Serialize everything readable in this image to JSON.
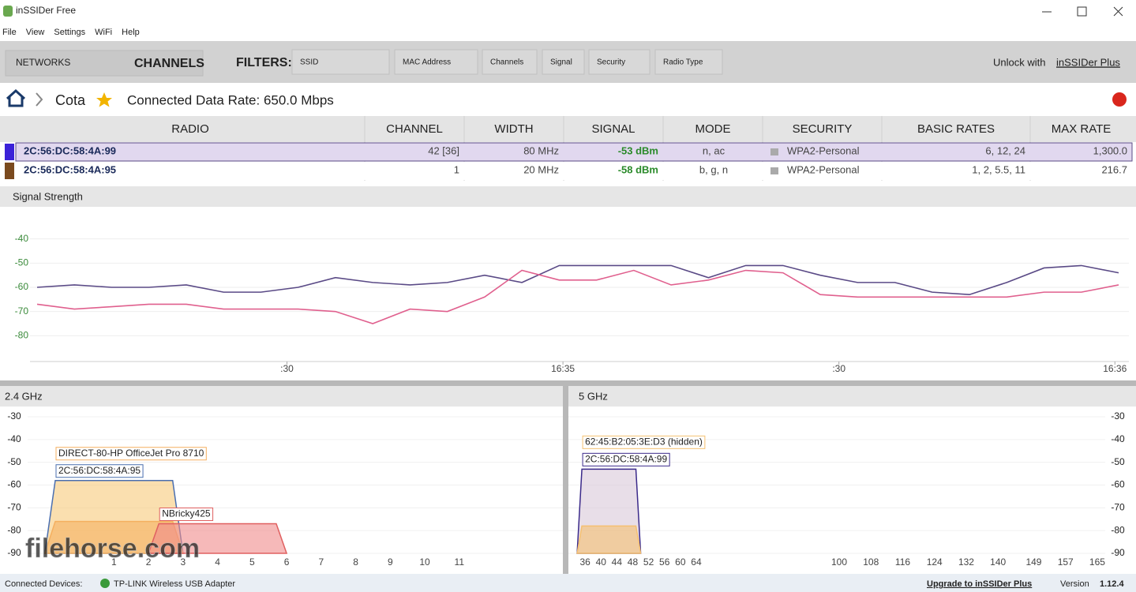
{
  "window": {
    "title": "inSSIDer Free"
  },
  "menu": [
    "File",
    "View",
    "Settings",
    "WiFi",
    "Help"
  ],
  "toolbar": {
    "tabs": [
      "NETWORKS",
      "CHANNELS"
    ],
    "filters_label": "FILTERS:",
    "filters": [
      "SSID",
      "MAC Address",
      "Channels",
      "Signal",
      "Security",
      "Radio Type"
    ],
    "unlock": "Unlock with",
    "unlock_link": "inSSIDer Plus"
  },
  "breadcrumb": {
    "network": "Cota",
    "data_rate": "Connected Data Rate: 650.0 Mbps"
  },
  "table": {
    "headers": [
      "RADIO",
      "CHANNEL",
      "WIDTH",
      "SIGNAL",
      "MODE",
      "SECURITY",
      "BASIC RATES",
      "MAX RATE"
    ],
    "rows": [
      {
        "color": "#3b22d8",
        "cells": [
          "2C:56:DC:58:4A:99",
          "42 [36]",
          "80 MHz",
          "-53 dBm",
          "n, ac",
          "WPA2-Personal",
          "6, 12, 24",
          "1,300.0"
        ]
      },
      {
        "color": "#7a4a1e",
        "cells": [
          "2C:56:DC:58:4A:95",
          "1",
          "20 MHz",
          "-58 dBm",
          "b, g, n",
          "WPA2-Personal",
          "1, 2, 5.5, 11",
          "216.7"
        ]
      }
    ]
  },
  "signal_chart": {
    "type": "line",
    "title": "Signal Strength",
    "xlim": [
      0,
      29
    ],
    "ylim": [
      -90,
      -30
    ],
    "yticks": [
      -40,
      -50,
      -60,
      -70,
      -80
    ],
    "xticks": [
      {
        "value": 6.7,
        "label": ":30"
      },
      {
        "value": 14.1,
        "label": "16:35"
      },
      {
        "value": 21.5,
        "label": ":30"
      },
      {
        "value": 28.9,
        "label": "16:36"
      }
    ],
    "series": [
      {
        "color": "#5a4a86",
        "values": [
          -60,
          -59,
          -60,
          -60,
          -59,
          -62,
          -62,
          -60,
          -56,
          -58,
          -59,
          -58,
          -55,
          -58,
          -51,
          -51,
          -51,
          -51,
          -56,
          -51,
          -51,
          -55,
          -58,
          -58,
          -62,
          -63,
          -58,
          -52,
          -51,
          -54
        ]
      },
      {
        "color": "#e0608e",
        "values": [
          -67,
          -69,
          -68,
          -67,
          -67,
          -69,
          -69,
          -69,
          -70,
          -75,
          -69,
          -70,
          -64,
          -53,
          -57,
          -57,
          -53,
          -59,
          -57,
          -53,
          -54,
          -63,
          -64,
          -64,
          -64,
          -64,
          -64,
          -62,
          -62,
          -59
        ]
      }
    ]
  },
  "channels_24": {
    "title": "2.4 GHz",
    "xlim": [
      -1.5,
      14
    ],
    "ylim": [
      -90,
      -30
    ],
    "yticks": [
      -30,
      -40,
      -50,
      -60,
      -70,
      -80,
      -90
    ],
    "ytick_colors": [
      "#3a9a3a",
      "#3a9a3a",
      "#3a9a3a",
      "#3a9a3a",
      "#8aa020",
      "#e08a10",
      "#e04020"
    ],
    "xticks": [
      1,
      2,
      3,
      4,
      5,
      6,
      7,
      8,
      9,
      10,
      11
    ],
    "networks": [
      {
        "label": "2C:56:DC:58:4A:95",
        "channel": 1,
        "width": 20,
        "signal": -58,
        "color": "#f7c97a",
        "stroke": "#4a6fb0"
      },
      {
        "label": "DIRECT-80-HP OfficeJet Pro 8710",
        "channel": 1,
        "width": 20,
        "signal": -76,
        "color": "#f5b060",
        "stroke": "#f5b060"
      },
      {
        "label": "NBricky425",
        "channel": 4,
        "width": 20,
        "signal": -77,
        "color": "#f08a8a",
        "stroke": "#e06060"
      }
    ]
  },
  "channels_5": {
    "title": "5 GHz",
    "xlim": [
      31.8,
      167
    ],
    "ylim": [
      -90,
      -30
    ],
    "yticks": [
      -30,
      -40,
      -50,
      -60,
      -70,
      -80,
      -90
    ],
    "ytick_colors": [
      "#3a9a3a",
      "#3a9a3a",
      "#3a9a3a",
      "#3a9a3a",
      "#8aa020",
      "#e08a10",
      "#e04020"
    ],
    "xticks": [
      36,
      40,
      44,
      48,
      52,
      56,
      60,
      64,
      100,
      108,
      116,
      124,
      132,
      140,
      149,
      157,
      165
    ],
    "networks": [
      {
        "label": "2C:56:DC:58:4A:99",
        "channel": 42,
        "width": 80,
        "signal": -53,
        "color": "#d8c8d8",
        "stroke": "#3b2a8a"
      },
      {
        "label": "62:45:B2:05:3E:D3 (hidden)",
        "channel": 42,
        "width": 80,
        "signal": -78,
        "color": "#f5c070",
        "stroke": "#f5c070"
      }
    ]
  },
  "status": {
    "label": "Connected Devices:",
    "device": "TP-LINK Wireless USB Adapter",
    "upgrade": "Upgrade to inSSIDer Plus",
    "version_label": "Version",
    "version": "1.12.4"
  },
  "watermark": "filehorse.com"
}
